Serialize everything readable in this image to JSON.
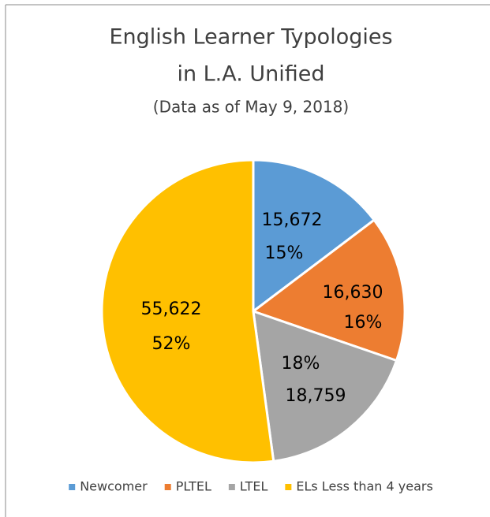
{
  "chart_data": {
    "type": "pie",
    "title": [
      "English Learner Typologies",
      "in L.A. Unified"
    ],
    "subtitle": "(Data as of May 9, 2018)",
    "categories": [
      "Newcomer",
      "PLTEL",
      "LTEL",
      "ELs Less than 4 years"
    ],
    "values": [
      15672,
      16630,
      18759,
      55622
    ],
    "value_labels": [
      "15,672",
      "16,630",
      "18,759",
      "55,622"
    ],
    "percents": [
      15,
      16,
      18,
      52
    ],
    "percent_labels": [
      "15%",
      "16%",
      "18%",
      "52%"
    ],
    "colors": [
      "#5b9bd5",
      "#ed7d31",
      "#a5a5a5",
      "#ffc000"
    ],
    "legend": "bottom"
  }
}
